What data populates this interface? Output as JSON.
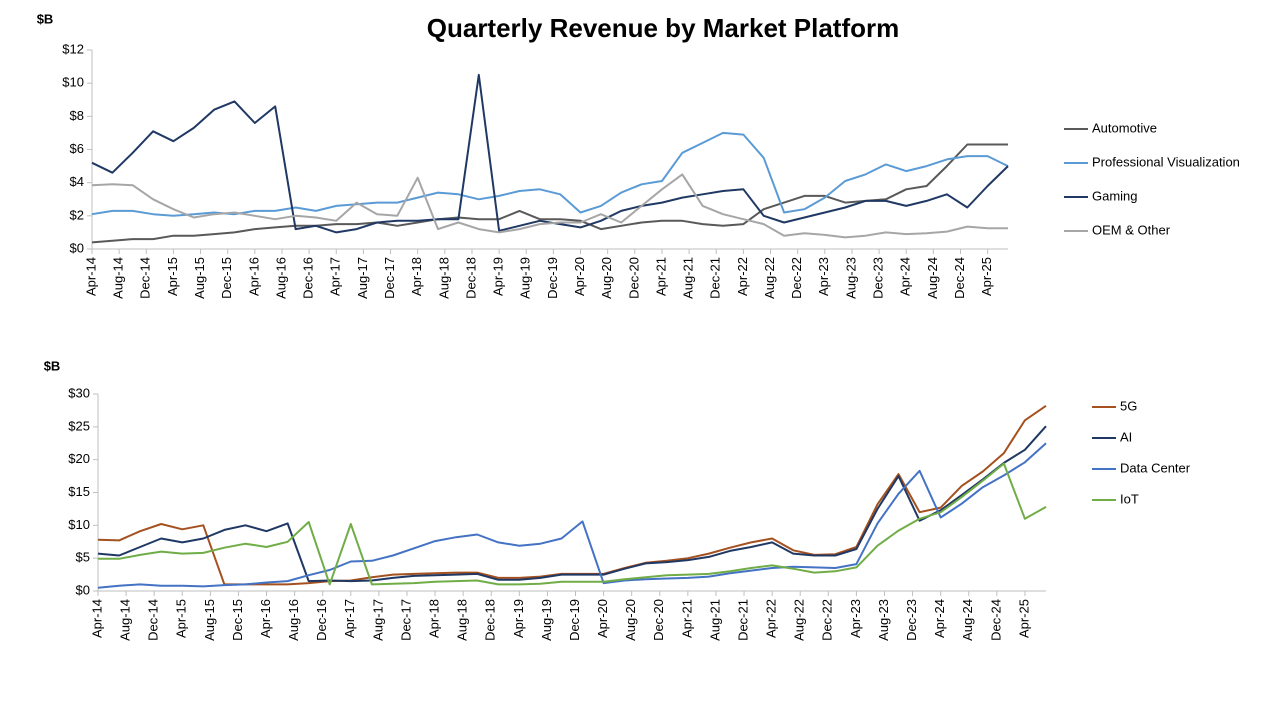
{
  "title": "Quarterly Revenue by Market Platform",
  "chart_data": [
    {
      "type": "line",
      "y_unit_label": "$B",
      "legend": "right",
      "x": [
        "2014-04",
        "2014-07",
        "2014-10",
        "2015-01",
        "2015-04",
        "2015-07",
        "2015-10",
        "2016-01",
        "2016-04",
        "2016-07",
        "2016-10",
        "2017-01",
        "2017-04",
        "2017-07",
        "2017-10",
        "2018-01",
        "2018-04",
        "2018-07",
        "2018-10",
        "2019-01",
        "2019-04",
        "2019-07",
        "2019-10",
        "2020-01",
        "2020-04",
        "2020-07",
        "2020-10",
        "2021-01",
        "2021-04",
        "2021-07",
        "2021-10",
        "2022-01",
        "2022-04",
        "2022-07",
        "2022-10",
        "2023-01",
        "2023-04",
        "2023-07",
        "2023-10",
        "2024-01",
        "2024-04",
        "2024-07",
        "2024-10",
        "2025-01",
        "2025-04",
        "2025-07"
      ],
      "xlim": [
        "2014-04",
        "2025-07"
      ],
      "xticks": [
        {
          "value": "2014-04",
          "label": "Apr-14"
        },
        {
          "value": "2014-08",
          "label": "Aug-14"
        },
        {
          "value": "2014-12",
          "label": "Dec-14"
        },
        {
          "value": "2015-04",
          "label": "Apr-15"
        },
        {
          "value": "2015-08",
          "label": "Aug-15"
        },
        {
          "value": "2015-12",
          "label": "Dec-15"
        },
        {
          "value": "2016-04",
          "label": "Apr-16"
        },
        {
          "value": "2016-08",
          "label": "Aug-16"
        },
        {
          "value": "2016-12",
          "label": "Dec-16"
        },
        {
          "value": "2017-04",
          "label": "Apr-17"
        },
        {
          "value": "2017-08",
          "label": "Aug-17"
        },
        {
          "value": "2017-12",
          "label": "Dec-17"
        },
        {
          "value": "2018-04",
          "label": "Apr-18"
        },
        {
          "value": "2018-08",
          "label": "Aug-18"
        },
        {
          "value": "2018-12",
          "label": "Dec-18"
        },
        {
          "value": "2019-04",
          "label": "Apr-19"
        },
        {
          "value": "2019-08",
          "label": "Aug-19"
        },
        {
          "value": "2019-12",
          "label": "Dec-19"
        },
        {
          "value": "2020-04",
          "label": "Apr-20"
        },
        {
          "value": "2020-08",
          "label": "Aug-20"
        },
        {
          "value": "2020-12",
          "label": "Dec-20"
        },
        {
          "value": "2021-04",
          "label": "Apr-21"
        },
        {
          "value": "2021-08",
          "label": "Aug-21"
        },
        {
          "value": "2021-12",
          "label": "Dec-21"
        },
        {
          "value": "2022-04",
          "label": "Apr-22"
        },
        {
          "value": "2022-08",
          "label": "Aug-22"
        },
        {
          "value": "2022-12",
          "label": "Dec-22"
        },
        {
          "value": "2023-04",
          "label": "Apr-23"
        },
        {
          "value": "2023-08",
          "label": "Aug-23"
        },
        {
          "value": "2023-12",
          "label": "Dec-23"
        },
        {
          "value": "2024-04",
          "label": "Apr-24"
        },
        {
          "value": "2024-08",
          "label": "Aug-24"
        },
        {
          "value": "2024-12",
          "label": "Dec-24"
        },
        {
          "value": "2025-04",
          "label": "Apr-25"
        }
      ],
      "ylim": [
        0,
        12
      ],
      "yticks": [
        {
          "value": 0,
          "label": "$0"
        },
        {
          "value": 2,
          "label": "$2"
        },
        {
          "value": 4,
          "label": "$4"
        },
        {
          "value": 6,
          "label": "$6"
        },
        {
          "value": 8,
          "label": "$8"
        },
        {
          "value": 10,
          "label": "$10"
        },
        {
          "value": 12,
          "label": "$12"
        }
      ],
      "series": [
        {
          "name": "Automotive",
          "color": "#595959",
          "values": [
            0.4,
            0.5,
            0.6,
            0.6,
            0.8,
            0.8,
            0.9,
            1.0,
            1.2,
            1.3,
            1.4,
            1.4,
            1.5,
            1.5,
            1.6,
            1.4,
            1.6,
            1.8,
            1.9,
            1.8,
            1.8,
            2.3,
            1.8,
            1.8,
            1.7,
            1.2,
            1.4,
            1.6,
            1.7,
            1.7,
            1.5,
            1.4,
            1.5,
            2.4,
            2.8,
            3.2,
            3.2,
            2.8,
            2.9,
            3.0,
            3.6,
            3.8,
            5.0,
            6.3,
            6.3,
            6.3
          ]
        },
        {
          "name": "Professional Visualization",
          "color": "#5b9bd5",
          "values": [
            2.1,
            2.3,
            2.3,
            2.1,
            2.0,
            2.1,
            2.2,
            2.1,
            2.3,
            2.3,
            2.5,
            2.3,
            2.6,
            2.7,
            2.8,
            2.8,
            3.1,
            3.4,
            3.3,
            3.0,
            3.2,
            3.5,
            3.6,
            3.3,
            2.2,
            2.6,
            3.4,
            3.9,
            4.1,
            5.8,
            6.4,
            7.0,
            6.9,
            5.5,
            2.2,
            2.4,
            3.1,
            4.1,
            4.5,
            5.1,
            4.7,
            5.0,
            5.4,
            5.6,
            5.6,
            5.0
          ]
        },
        {
          "name": "Gaming",
          "color": "#203864",
          "values": [
            5.2,
            4.6,
            5.8,
            7.1,
            6.5,
            7.3,
            8.4,
            8.9,
            7.6,
            8.6,
            1.2,
            1.4,
            1.0,
            1.2,
            1.6,
            1.7,
            1.7,
            1.8,
            1.8,
            10.5,
            1.1,
            1.4,
            1.7,
            1.5,
            1.3,
            1.7,
            2.3,
            2.6,
            2.8,
            3.1,
            3.3,
            3.5,
            3.6,
            2.0,
            1.6,
            1.9,
            2.2,
            2.5,
            2.9,
            2.9,
            2.6,
            2.9,
            3.3,
            2.5,
            3.8,
            5.0
          ]
        },
        {
          "name": "OEM & Other",
          "color": "#a6a6a6",
          "values": [
            3.85,
            3.9,
            3.85,
            3.0,
            2.4,
            1.9,
            2.1,
            2.2,
            2.0,
            1.8,
            2.0,
            1.9,
            1.7,
            2.8,
            2.1,
            2.0,
            4.3,
            1.2,
            1.6,
            1.2,
            1.0,
            1.2,
            1.5,
            1.6,
            1.6,
            2.1,
            1.6,
            2.6,
            3.6,
            4.5,
            2.6,
            2.1,
            1.8,
            1.5,
            0.8,
            0.95,
            0.85,
            0.7,
            0.8,
            1.0,
            0.9,
            0.95,
            1.05,
            1.35,
            1.25,
            1.25
          ]
        }
      ]
    },
    {
      "type": "line",
      "y_unit_label": "$B",
      "legend": "right",
      "x": [
        "2014-04",
        "2014-07",
        "2014-10",
        "2015-01",
        "2015-04",
        "2015-07",
        "2015-10",
        "2016-01",
        "2016-04",
        "2016-07",
        "2016-10",
        "2017-01",
        "2017-04",
        "2017-07",
        "2017-10",
        "2018-01",
        "2018-04",
        "2018-07",
        "2018-10",
        "2019-01",
        "2019-04",
        "2019-07",
        "2019-10",
        "2020-01",
        "2020-04",
        "2020-07",
        "2020-10",
        "2021-01",
        "2021-04",
        "2021-07",
        "2021-10",
        "2022-01",
        "2022-04",
        "2022-07",
        "2022-10",
        "2023-01",
        "2023-04",
        "2023-07",
        "2023-10",
        "2024-01",
        "2024-04",
        "2024-07",
        "2024-10",
        "2025-01",
        "2025-04",
        "2025-07"
      ],
      "xlim": [
        "2014-04",
        "2025-07"
      ],
      "xticks": [
        {
          "value": "2014-04",
          "label": "Apr-14"
        },
        {
          "value": "2014-08",
          "label": "Aug-14"
        },
        {
          "value": "2014-12",
          "label": "Dec-14"
        },
        {
          "value": "2015-04",
          "label": "Apr-15"
        },
        {
          "value": "2015-08",
          "label": "Aug-15"
        },
        {
          "value": "2015-12",
          "label": "Dec-15"
        },
        {
          "value": "2016-04",
          "label": "Apr-16"
        },
        {
          "value": "2016-08",
          "label": "Aug-16"
        },
        {
          "value": "2016-12",
          "label": "Dec-16"
        },
        {
          "value": "2017-04",
          "label": "Apr-17"
        },
        {
          "value": "2017-08",
          "label": "Aug-17"
        },
        {
          "value": "2017-12",
          "label": "Dec-17"
        },
        {
          "value": "2018-04",
          "label": "Apr-18"
        },
        {
          "value": "2018-08",
          "label": "Aug-18"
        },
        {
          "value": "2018-12",
          "label": "Dec-18"
        },
        {
          "value": "2019-04",
          "label": "Apr-19"
        },
        {
          "value": "2019-08",
          "label": "Aug-19"
        },
        {
          "value": "2019-12",
          "label": "Dec-19"
        },
        {
          "value": "2020-04",
          "label": "Apr-20"
        },
        {
          "value": "2020-08",
          "label": "Aug-20"
        },
        {
          "value": "2020-12",
          "label": "Dec-20"
        },
        {
          "value": "2021-04",
          "label": "Apr-21"
        },
        {
          "value": "2021-08",
          "label": "Aug-21"
        },
        {
          "value": "2021-12",
          "label": "Dec-21"
        },
        {
          "value": "2022-04",
          "label": "Apr-22"
        },
        {
          "value": "2022-08",
          "label": "Aug-22"
        },
        {
          "value": "2022-12",
          "label": "Dec-22"
        },
        {
          "value": "2023-04",
          "label": "Apr-23"
        },
        {
          "value": "2023-08",
          "label": "Aug-23"
        },
        {
          "value": "2023-12",
          "label": "Dec-23"
        },
        {
          "value": "2024-04",
          "label": "Apr-24"
        },
        {
          "value": "2024-08",
          "label": "Aug-24"
        },
        {
          "value": "2024-12",
          "label": "Dec-24"
        },
        {
          "value": "2025-04",
          "label": "Apr-25"
        }
      ],
      "ylim": [
        0,
        30
      ],
      "yticks": [
        {
          "value": 0,
          "label": "$0"
        },
        {
          "value": 5,
          "label": "$5"
        },
        {
          "value": 10,
          "label": "$10"
        },
        {
          "value": 15,
          "label": "$15"
        },
        {
          "value": 20,
          "label": "$20"
        },
        {
          "value": 25,
          "label": "$25"
        },
        {
          "value": 30,
          "label": "$30"
        }
      ],
      "series": [
        {
          "name": "5G",
          "color": "#a5511f",
          "values": [
            7.8,
            7.7,
            9.1,
            10.2,
            9.4,
            10.0,
            1.0,
            1.0,
            1.0,
            1.0,
            1.2,
            1.5,
            1.6,
            2.1,
            2.5,
            2.6,
            2.7,
            2.8,
            2.8,
            2.0,
            2.0,
            2.2,
            2.6,
            2.6,
            2.6,
            3.5,
            4.3,
            4.6,
            5.0,
            5.7,
            6.6,
            7.4,
            8.0,
            6.2,
            5.5,
            5.6,
            6.7,
            13.2,
            17.8,
            12.0,
            12.7,
            16.0,
            18.2,
            21.0,
            26.0,
            28.2
          ]
        },
        {
          "name": "AI",
          "color": "#1f3864",
          "values": [
            5.7,
            5.4,
            6.7,
            8.0,
            7.4,
            8.0,
            9.3,
            10.0,
            9.1,
            10.3,
            1.5,
            1.6,
            1.5,
            1.6,
            2.0,
            2.3,
            2.4,
            2.5,
            2.6,
            1.7,
            1.7,
            2.0,
            2.5,
            2.5,
            2.5,
            3.4,
            4.2,
            4.4,
            4.7,
            5.2,
            6.1,
            6.7,
            7.4,
            5.7,
            5.4,
            5.4,
            6.4,
            12.5,
            17.5,
            10.7,
            12.3,
            14.6,
            17.0,
            19.5,
            21.5,
            25.1
          ]
        },
        {
          "name": "Data Center",
          "color": "#4472c4",
          "values": [
            0.5,
            0.8,
            1.0,
            0.8,
            0.8,
            0.7,
            0.9,
            1.0,
            1.3,
            1.5,
            2.4,
            3.2,
            4.5,
            4.6,
            5.4,
            6.5,
            7.6,
            8.2,
            8.6,
            7.4,
            6.9,
            7.2,
            8.0,
            10.6,
            1.2,
            1.6,
            1.8,
            1.9,
            2.0,
            2.2,
            2.7,
            3.1,
            3.5,
            3.7,
            3.6,
            3.5,
            4.1,
            10.3,
            14.8,
            18.3,
            11.2,
            13.3,
            15.8,
            17.6,
            19.6,
            22.5
          ]
        },
        {
          "name": "IoT",
          "color": "#70ad47",
          "values": [
            4.9,
            4.9,
            5.5,
            6.0,
            5.7,
            5.8,
            6.6,
            7.2,
            6.7,
            7.5,
            10.5,
            1.0,
            10.2,
            1.0,
            1.1,
            1.2,
            1.4,
            1.5,
            1.6,
            1.0,
            1.0,
            1.1,
            1.4,
            1.4,
            1.4,
            1.8,
            2.1,
            2.4,
            2.5,
            2.6,
            3.0,
            3.5,
            3.9,
            3.4,
            2.8,
            3.0,
            3.6,
            6.9,
            9.2,
            11.0,
            12.0,
            14.3,
            16.8,
            19.4,
            11.0,
            12.8
          ]
        }
      ]
    }
  ]
}
